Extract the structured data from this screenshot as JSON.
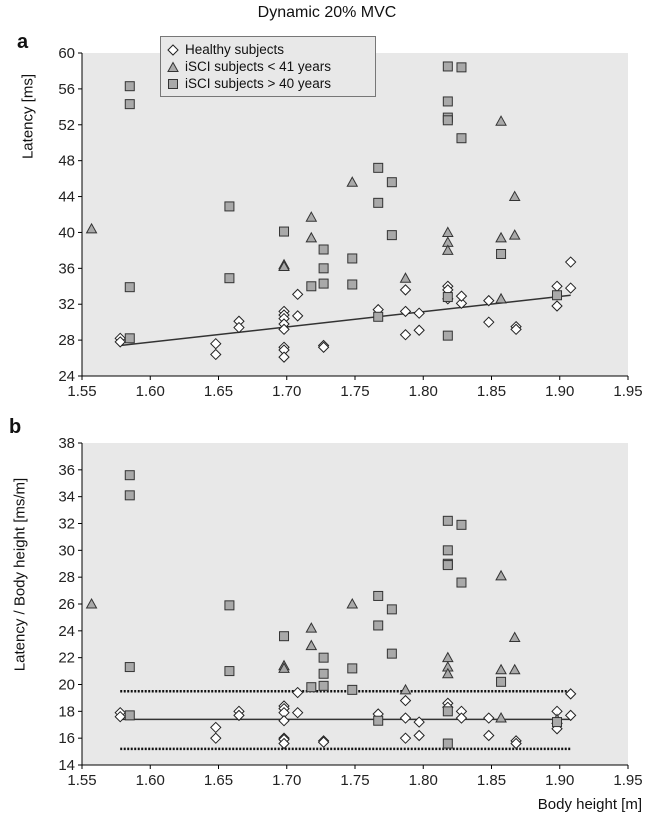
{
  "title": "Dynamic 20% MVC",
  "xlabel": "Body height [m]",
  "legend": {
    "healthy": "Healthy subjects",
    "young": "iSCI subjects < 41 years",
    "old": "iSCI subjects > 40 years"
  },
  "colors": {
    "plot_bg": "#e8e8e8",
    "marker_fill": "#a9a9a9",
    "line": "#333333"
  },
  "chart_data": [
    {
      "panel": "a",
      "type": "scatter",
      "ylabel": "Latency [ms]",
      "xlim": [
        1.55,
        1.95
      ],
      "ylim": [
        24,
        60
      ],
      "xticks": [
        "1.55",
        "1.60",
        "1.65",
        "1.70",
        "1.75",
        "1.80",
        "1.85",
        "1.90",
        "1.95"
      ],
      "yticks": [
        "24",
        "28",
        "32",
        "36",
        "40",
        "44",
        "48",
        "52",
        "56",
        "60"
      ],
      "series": [
        {
          "name": "Healthy subjects",
          "marker": "diamond",
          "points": [
            [
              1.578,
              28.2
            ],
            [
              1.578,
              27.8
            ],
            [
              1.648,
              27.6
            ],
            [
              1.648,
              26.4
            ],
            [
              1.665,
              30.1
            ],
            [
              1.665,
              29.4
            ],
            [
              1.698,
              31.2
            ],
            [
              1.698,
              30.8
            ],
            [
              1.698,
              30.4
            ],
            [
              1.698,
              29.8
            ],
            [
              1.698,
              29.2
            ],
            [
              1.698,
              27.2
            ],
            [
              1.698,
              26.9
            ],
            [
              1.698,
              26.1
            ],
            [
              1.708,
              33.1
            ],
            [
              1.708,
              30.7
            ],
            [
              1.727,
              27.4
            ],
            [
              1.727,
              27.2
            ],
            [
              1.767,
              31.4
            ],
            [
              1.787,
              33.6
            ],
            [
              1.787,
              31.2
            ],
            [
              1.787,
              28.6
            ],
            [
              1.797,
              31.0
            ],
            [
              1.797,
              29.1
            ],
            [
              1.818,
              34.0
            ],
            [
              1.818,
              33.6
            ],
            [
              1.818,
              32.6
            ],
            [
              1.828,
              32.1
            ],
            [
              1.828,
              32.9
            ],
            [
              1.848,
              32.4
            ],
            [
              1.848,
              30.0
            ],
            [
              1.868,
              29.5
            ],
            [
              1.868,
              29.2
            ],
            [
              1.898,
              34.0
            ],
            [
              1.898,
              31.8
            ],
            [
              1.908,
              36.7
            ],
            [
              1.908,
              33.8
            ]
          ]
        },
        {
          "name": "iSCI subjects < 41 years",
          "marker": "triangle",
          "points": [
            [
              1.557,
              40.4
            ],
            [
              1.698,
              36.4
            ],
            [
              1.698,
              36.2
            ],
            [
              1.718,
              41.7
            ],
            [
              1.718,
              39.4
            ],
            [
              1.748,
              45.6
            ],
            [
              1.787,
              34.9
            ],
            [
              1.818,
              40.0
            ],
            [
              1.818,
              38.9
            ],
            [
              1.818,
              38.0
            ],
            [
              1.857,
              52.4
            ],
            [
              1.857,
              39.4
            ],
            [
              1.857,
              32.6
            ],
            [
              1.867,
              44.0
            ],
            [
              1.867,
              39.7
            ]
          ]
        },
        {
          "name": "iSCI subjects > 40 years",
          "marker": "square",
          "points": [
            [
              1.585,
              56.3
            ],
            [
              1.585,
              54.3
            ],
            [
              1.585,
              33.9
            ],
            [
              1.585,
              28.2
            ],
            [
              1.658,
              42.9
            ],
            [
              1.658,
              34.9
            ],
            [
              1.698,
              40.1
            ],
            [
              1.718,
              34.0
            ],
            [
              1.727,
              38.1
            ],
            [
              1.727,
              36.0
            ],
            [
              1.727,
              34.3
            ],
            [
              1.748,
              37.1
            ],
            [
              1.748,
              34.2
            ],
            [
              1.767,
              47.2
            ],
            [
              1.767,
              43.3
            ],
            [
              1.767,
              30.6
            ],
            [
              1.777,
              45.6
            ],
            [
              1.777,
              39.7
            ],
            [
              1.818,
              58.5
            ],
            [
              1.818,
              54.6
            ],
            [
              1.818,
              52.8
            ],
            [
              1.818,
              52.5
            ],
            [
              1.818,
              32.8
            ],
            [
              1.818,
              28.5
            ],
            [
              1.828,
              58.4
            ],
            [
              1.828,
              50.5
            ],
            [
              1.857,
              37.6
            ],
            [
              1.898,
              33.0
            ]
          ]
        }
      ],
      "regression_line": [
        [
          1.578,
          27.4
        ],
        [
          1.908,
          33.0
        ]
      ]
    },
    {
      "panel": "b",
      "type": "scatter",
      "ylabel": "Latency / Body height [ms/m]",
      "xlim": [
        1.55,
        1.95
      ],
      "ylim": [
        14,
        38
      ],
      "xticks": [
        "1.55",
        "1.60",
        "1.65",
        "1.70",
        "1.75",
        "1.80",
        "1.85",
        "1.90",
        "1.95"
      ],
      "yticks": [
        "14",
        "16",
        "18",
        "20",
        "22",
        "24",
        "26",
        "28",
        "30",
        "32",
        "34",
        "36",
        "38"
      ],
      "series": [
        {
          "name": "Healthy subjects",
          "marker": "diamond",
          "points": [
            [
              1.578,
              17.9
            ],
            [
              1.578,
              17.6
            ],
            [
              1.648,
              16.8
            ],
            [
              1.648,
              16.0
            ],
            [
              1.665,
              18.0
            ],
            [
              1.665,
              17.7
            ],
            [
              1.698,
              18.4
            ],
            [
              1.698,
              18.2
            ],
            [
              1.698,
              17.9
            ],
            [
              1.698,
              17.3
            ],
            [
              1.698,
              16.0
            ],
            [
              1.698,
              15.9
            ],
            [
              1.698,
              15.6
            ],
            [
              1.708,
              19.4
            ],
            [
              1.708,
              17.9
            ],
            [
              1.727,
              15.8
            ],
            [
              1.727,
              15.7
            ],
            [
              1.767,
              17.8
            ],
            [
              1.787,
              18.8
            ],
            [
              1.787,
              17.5
            ],
            [
              1.787,
              16.0
            ],
            [
              1.797,
              17.2
            ],
            [
              1.797,
              16.2
            ],
            [
              1.818,
              18.6
            ],
            [
              1.818,
              18.3
            ],
            [
              1.828,
              18.0
            ],
            [
              1.828,
              17.5
            ],
            [
              1.848,
              17.5
            ],
            [
              1.848,
              16.2
            ],
            [
              1.868,
              15.8
            ],
            [
              1.868,
              15.6
            ],
            [
              1.898,
              18.0
            ],
            [
              1.898,
              16.7
            ],
            [
              1.908,
              19.3
            ],
            [
              1.908,
              17.7
            ]
          ]
        },
        {
          "name": "iSCI subjects < 41 years",
          "marker": "triangle",
          "points": [
            [
              1.557,
              26.0
            ],
            [
              1.698,
              21.4
            ],
            [
              1.698,
              21.2
            ],
            [
              1.718,
              24.2
            ],
            [
              1.718,
              22.9
            ],
            [
              1.748,
              26.0
            ],
            [
              1.787,
              19.6
            ],
            [
              1.818,
              22.0
            ],
            [
              1.818,
              21.3
            ],
            [
              1.818,
              20.8
            ],
            [
              1.857,
              28.1
            ],
            [
              1.857,
              21.1
            ],
            [
              1.857,
              17.5
            ],
            [
              1.867,
              23.5
            ],
            [
              1.867,
              21.1
            ],
            [
              1.898,
              17.4
            ]
          ]
        },
        {
          "name": "iSCI subjects > 40 years",
          "marker": "square",
          "points": [
            [
              1.585,
              35.6
            ],
            [
              1.585,
              34.1
            ],
            [
              1.585,
              21.3
            ],
            [
              1.585,
              17.7
            ],
            [
              1.658,
              25.9
            ],
            [
              1.658,
              21.0
            ],
            [
              1.698,
              23.6
            ],
            [
              1.718,
              19.8
            ],
            [
              1.727,
              22.0
            ],
            [
              1.727,
              20.8
            ],
            [
              1.727,
              19.9
            ],
            [
              1.748,
              21.2
            ],
            [
              1.748,
              19.6
            ],
            [
              1.767,
              26.6
            ],
            [
              1.767,
              24.4
            ],
            [
              1.767,
              17.3
            ],
            [
              1.777,
              25.6
            ],
            [
              1.777,
              22.3
            ],
            [
              1.818,
              32.2
            ],
            [
              1.818,
              30.0
            ],
            [
              1.818,
              29.0
            ],
            [
              1.818,
              28.9
            ],
            [
              1.818,
              18.0
            ],
            [
              1.818,
              15.6
            ],
            [
              1.828,
              31.9
            ],
            [
              1.828,
              27.6
            ],
            [
              1.857,
              20.2
            ],
            [
              1.898,
              17.2
            ]
          ]
        }
      ],
      "mean_line": 17.4,
      "sd_lines": [
        19.5,
        15.2
      ]
    }
  ]
}
